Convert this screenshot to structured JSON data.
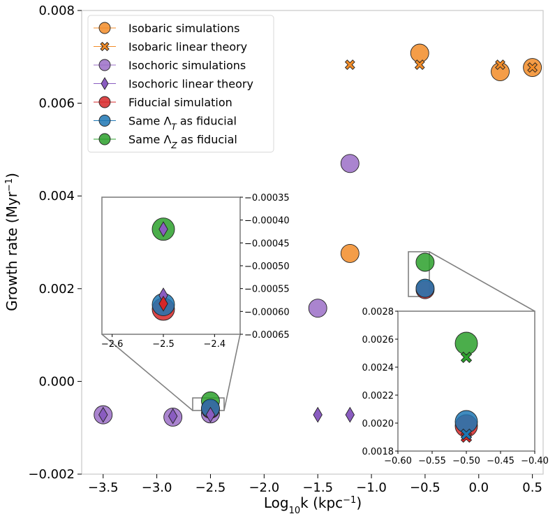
{
  "chart_data": {
    "type": "scatter",
    "xlabel": "Log₁₀k (kpc⁻¹)",
    "ylabel": "Growth rate (Myr⁻¹)",
    "xlim": [
      -3.7,
      0.6
    ],
    "ylim": [
      -0.002,
      0.008
    ],
    "xticks": [
      "−3.5",
      "−3.0",
      "−2.5",
      "−2.0",
      "−1.5",
      "−1.0",
      "−0.5",
      "0.0",
      "0.5"
    ],
    "yticks": [
      "−0.002",
      "0.000",
      "0.002",
      "0.004",
      "0.006",
      "0.008"
    ],
    "xtick_values": [
      -3.5,
      -3.0,
      -2.5,
      -2.0,
      -1.5,
      -1.0,
      -0.5,
      0.0,
      0.5
    ],
    "ytick_values": [
      -0.002,
      0.0,
      0.002,
      0.004,
      0.006,
      0.008
    ],
    "legend_position": "top-left",
    "series": [
      {
        "name": "Isobaric simulations",
        "marker": "circle",
        "color": "#f28c28",
        "points": [
          [
            -1.2,
            0.00276
          ],
          [
            -0.55,
            0.00708
          ],
          [
            0.2,
            0.00668
          ],
          [
            0.5,
            0.00677
          ]
        ]
      },
      {
        "name": "Isobaric linear theory",
        "marker": "x",
        "color": "#f28c28",
        "points": [
          [
            -1.2,
            0.00683
          ],
          [
            -0.55,
            0.00683
          ],
          [
            0.2,
            0.00683
          ],
          [
            0.5,
            0.00677
          ]
        ]
      },
      {
        "name": "Isochoric simulations",
        "marker": "circle",
        "color": "#9b6fc7",
        "points": [
          [
            -3.5,
            -0.00072
          ],
          [
            -2.85,
            -0.00077
          ],
          [
            -2.5,
            -0.0007
          ],
          [
            -1.5,
            0.00158
          ],
          [
            -1.2,
            0.0047
          ]
        ]
      },
      {
        "name": "Isochoric linear theory",
        "marker": "diamond",
        "color": "#8a5cc0",
        "points": [
          [
            -3.5,
            -0.00072
          ],
          [
            -2.85,
            -0.00075
          ],
          [
            -2.5,
            -0.00072
          ],
          [
            -1.5,
            -0.00072
          ],
          [
            -1.2,
            -0.00072
          ]
        ]
      },
      {
        "name": "Fiducial simulation",
        "marker": "circle",
        "color": "#d62728",
        "points": [
          [
            -2.5,
            -0.0006
          ],
          [
            -0.5,
            0.00198
          ]
        ]
      },
      {
        "name": "Same Λ_T as fiducial",
        "marker": "circle",
        "color": "#1f77b4",
        "points": [
          [
            -2.5,
            -0.00058
          ],
          [
            -0.5,
            0.00201
          ]
        ]
      },
      {
        "name": "Same Λ_Z as fiducial",
        "marker": "circle",
        "color": "#2ca02c",
        "points": [
          [
            -2.5,
            -0.00042
          ],
          [
            -0.5,
            0.00257
          ]
        ]
      }
    ],
    "insets": [
      {
        "xlim": [
          -2.62,
          -2.35
        ],
        "ylim": [
          -0.00065,
          -0.00035
        ],
        "xticks": [
          "−2.6",
          "−2.5",
          "−2.4"
        ],
        "xtick_values": [
          -2.6,
          -2.5,
          -2.4
        ],
        "yticks": [
          "−0.00035",
          "−0.00040",
          "−0.00045",
          "−0.00050",
          "−0.00055",
          "−0.00060",
          "−0.00065"
        ],
        "ytick_values": [
          -0.00035,
          -0.0004,
          -0.00045,
          -0.0005,
          -0.00055,
          -0.0006,
          -0.00065
        ],
        "yaxis_side": "right",
        "points": [
          {
            "series": "Same Λ_Z as fiducial",
            "marker": "circle",
            "x": -2.5,
            "y": -0.00042
          },
          {
            "series": "Isochoric linear theory",
            "marker": "diamond",
            "x": -2.5,
            "y": -0.00042
          },
          {
            "series": "Fiducial simulation",
            "marker": "circle",
            "x": -2.5,
            "y": -0.000595
          },
          {
            "series": "Same Λ_T as fiducial",
            "marker": "circle",
            "x": -2.5,
            "y": -0.000585
          },
          {
            "series": "Isochoric linear theory",
            "marker": "diamond",
            "x": -2.5,
            "y": -0.000565
          },
          {
            "series": "Fiducial simulation",
            "marker": "diamond",
            "x": -2.5,
            "y": -0.000583
          }
        ]
      },
      {
        "xlim": [
          -0.6,
          -0.4
        ],
        "ylim": [
          0.0018,
          0.0028
        ],
        "xticks": [
          "−0.60",
          "−0.55",
          "−0.50",
          "−0.45",
          "−0.40"
        ],
        "xtick_values": [
          -0.6,
          -0.55,
          -0.5,
          -0.45,
          -0.4
        ],
        "yticks": [
          "0.0018",
          "0.0020",
          "0.0022",
          "0.0024",
          "0.0026",
          "0.0028"
        ],
        "ytick_values": [
          0.0018,
          0.002,
          0.0022,
          0.0024,
          0.0026,
          0.0028
        ],
        "yaxis_side": "left",
        "points": [
          {
            "series": "Same Λ_Z as fiducial",
            "marker": "circle",
            "x": -0.5,
            "y": 0.00257
          },
          {
            "series": "Same Λ_Z as fiducial",
            "marker": "x",
            "x": -0.5,
            "y": 0.00247
          },
          {
            "series": "Fiducial simulation",
            "marker": "circle",
            "x": -0.5,
            "y": 0.00198
          },
          {
            "series": "Same Λ_T as fiducial",
            "marker": "circle",
            "x": -0.5,
            "y": 0.00201
          },
          {
            "series": "Fiducial simulation",
            "marker": "x",
            "x": -0.5,
            "y": 0.0019
          },
          {
            "series": "Same Λ_T as fiducial",
            "marker": "x",
            "x": -0.5,
            "y": 0.00192
          }
        ]
      }
    ]
  }
}
